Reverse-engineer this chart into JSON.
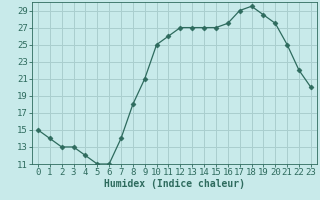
{
  "x": [
    0,
    1,
    2,
    3,
    4,
    5,
    6,
    7,
    8,
    9,
    10,
    11,
    12,
    13,
    14,
    15,
    16,
    17,
    18,
    19,
    20,
    21,
    22,
    23
  ],
  "y": [
    15,
    14,
    13,
    13,
    12,
    11,
    11,
    14,
    18,
    21,
    25,
    26,
    27,
    27,
    27,
    27,
    27.5,
    29,
    29.5,
    28.5,
    27.5,
    25,
    22,
    20
  ],
  "line_color": "#2e6b5e",
  "marker": "D",
  "marker_size": 2.5,
  "bg_color": "#c8eaea",
  "grid_color": "#aacece",
  "xlabel": "Humidex (Indice chaleur)",
  "xlabel_fontsize": 7,
  "tick_fontsize": 6.5,
  "ylim": [
    11,
    30
  ],
  "xlim": [
    -0.5,
    23.5
  ],
  "yticks": [
    11,
    13,
    15,
    17,
    19,
    21,
    23,
    25,
    27,
    29
  ],
  "xticks": [
    0,
    1,
    2,
    3,
    4,
    5,
    6,
    7,
    8,
    9,
    10,
    11,
    12,
    13,
    14,
    15,
    16,
    17,
    18,
    19,
    20,
    21,
    22,
    23
  ]
}
